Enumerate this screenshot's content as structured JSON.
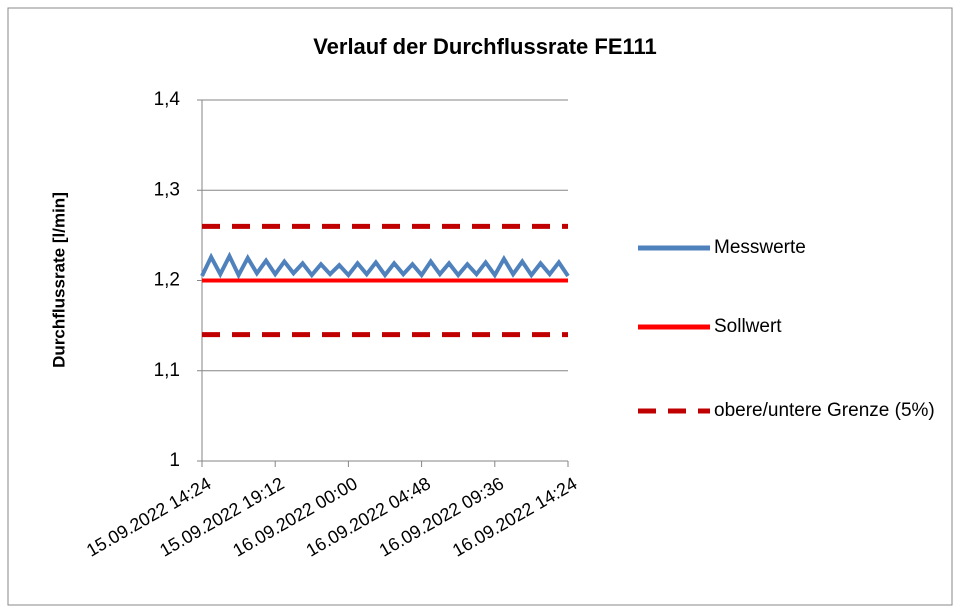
{
  "chart_data": {
    "type": "line",
    "title": "Verlauf der Durchflussrate FE111",
    "y_label": "Durchflussrate  [l/min]",
    "x": [
      "2022-09-15T14:24",
      "2022-09-15T15:00",
      "2022-09-15T15:36",
      "2022-09-15T16:12",
      "2022-09-15T16:48",
      "2022-09-15T17:24",
      "2022-09-15T18:00",
      "2022-09-15T18:36",
      "2022-09-15T19:12",
      "2022-09-15T19:48",
      "2022-09-15T20:24",
      "2022-09-15T21:00",
      "2022-09-15T21:36",
      "2022-09-15T22:12",
      "2022-09-15T22:48",
      "2022-09-15T23:24",
      "2022-09-16T00:00",
      "2022-09-16T00:36",
      "2022-09-16T01:12",
      "2022-09-16T01:48",
      "2022-09-16T02:24",
      "2022-09-16T03:00",
      "2022-09-16T03:36",
      "2022-09-16T04:12",
      "2022-09-16T04:48",
      "2022-09-16T05:24",
      "2022-09-16T06:00",
      "2022-09-16T06:36",
      "2022-09-16T07:12",
      "2022-09-16T07:48",
      "2022-09-16T08:24",
      "2022-09-16T09:00",
      "2022-09-16T09:36",
      "2022-09-16T10:12",
      "2022-09-16T10:48",
      "2022-09-16T11:24",
      "2022-09-16T12:00",
      "2022-09-16T12:36",
      "2022-09-16T13:12",
      "2022-09-16T13:48",
      "2022-09-16T14:24"
    ],
    "series": [
      {
        "name": "Messwerte",
        "color": "#4f81bd",
        "values": [
          1.205,
          1.226,
          1.207,
          1.227,
          1.206,
          1.225,
          1.208,
          1.222,
          1.207,
          1.221,
          1.208,
          1.219,
          1.206,
          1.218,
          1.207,
          1.217,
          1.206,
          1.219,
          1.207,
          1.22,
          1.206,
          1.219,
          1.207,
          1.218,
          1.206,
          1.221,
          1.207,
          1.219,
          1.206,
          1.218,
          1.207,
          1.22,
          1.206,
          1.224,
          1.207,
          1.221,
          1.206,
          1.219,
          1.207,
          1.22,
          1.205
        ]
      },
      {
        "name": "Sollwert",
        "color": "#ff0000",
        "x": [
          "2022-09-15T14:24",
          "2022-09-16T14:24"
        ],
        "values": [
          1.2,
          1.2
        ]
      },
      {
        "name": "obere/untere Grenze (5%)",
        "color": "#c00000",
        "dashed": true,
        "x": [
          "2022-09-15T14:24",
          "2022-09-16T14:24"
        ],
        "upper": [
          1.26,
          1.26
        ],
        "lower": [
          1.14,
          1.14
        ]
      }
    ],
    "xlim": [
      "2022-09-15T14:24",
      "2022-09-16T14:24"
    ],
    "xticks": [
      {
        "value": "2022-09-15T14:24",
        "label": "15.09.2022 14:24"
      },
      {
        "value": "2022-09-15T19:12",
        "label": "15.09.2022 19:12"
      },
      {
        "value": "2022-09-16T00:00",
        "label": "16.09.2022 00:00"
      },
      {
        "value": "2022-09-16T04:48",
        "label": "16.09.2022 04:48"
      },
      {
        "value": "2022-09-16T09:36",
        "label": "16.09.2022 09:36"
      },
      {
        "value": "2022-09-16T14:24",
        "label": "16.09.2022 14:24"
      }
    ],
    "ylim": [
      1,
      1.4
    ],
    "yticks": [
      1,
      {
        "value": 1.1,
        "label": "1,1"
      },
      {
        "value": 1.2,
        "label": "1,2"
      },
      {
        "value": 1.3,
        "label": "1,3"
      },
      {
        "value": 1.4,
        "label": "1,4"
      }
    ],
    "grid": true,
    "legend": "right"
  }
}
